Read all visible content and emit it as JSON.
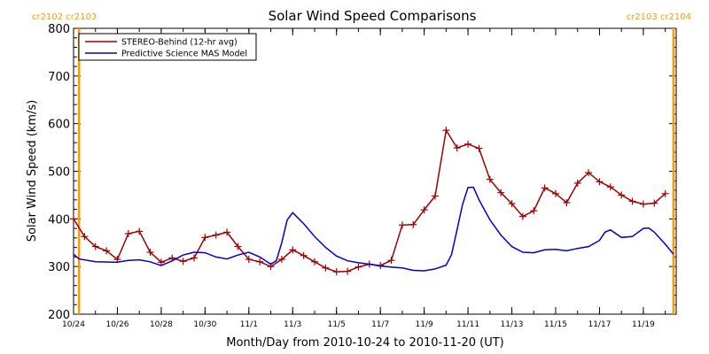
{
  "chart_data": {
    "type": "line",
    "title": "Solar Wind Speed Comparisons",
    "xlabel": "Month/Day from 2010-10-24 to 2010-11-20 (UT)",
    "ylabel": "Solar Wind Speed (km/s)",
    "xlim": [
      "2010-10-24T00:00",
      "2010-11-20T12:00"
    ],
    "ylim": [
      200,
      800
    ],
    "yticks": [
      200,
      300,
      400,
      500,
      600,
      700,
      800
    ],
    "xticks": [
      {
        "date": "2010-10-24",
        "label": "10/24"
      },
      {
        "date": "2010-10-26",
        "label": "10/26"
      },
      {
        "date": "2010-10-28",
        "label": "10/28"
      },
      {
        "date": "2010-10-30",
        "label": "10/30"
      },
      {
        "date": "2010-11-01",
        "label": "11/1"
      },
      {
        "date": "2010-11-03",
        "label": "11/3"
      },
      {
        "date": "2010-11-05",
        "label": "11/5"
      },
      {
        "date": "2010-11-07",
        "label": "11/7"
      },
      {
        "date": "2010-11-09",
        "label": "11/9"
      },
      {
        "date": "2010-11-11",
        "label": "11/11"
      },
      {
        "date": "2010-11-13",
        "label": "11/13"
      },
      {
        "date": "2010-11-15",
        "label": "11/15"
      },
      {
        "date": "2010-11-17",
        "label": "11/17"
      },
      {
        "date": "2010-11-19",
        "label": "11/19"
      }
    ],
    "carrington_markers": [
      {
        "date": "2010-10-24T06:00",
        "label": "cr2102 cr2103",
        "anchor": "left"
      },
      {
        "date": "2010-11-20T09:00",
        "label": "cr2103 cr2104",
        "anchor": "right"
      }
    ],
    "colors": {
      "stereo": "#a00000",
      "model": "#0000cc",
      "markers": "#ff9900"
    },
    "legend": {
      "position": "top-left",
      "entries": [
        {
          "name": "STEREO-Behind (12-hr avg)",
          "color": "#a00000"
        },
        {
          "name": "Predictive Science MAS Model",
          "color": "#0000cc"
        }
      ]
    },
    "series": [
      {
        "name": "STEREO-Behind (12-hr avg)",
        "color": "#a00000",
        "marker": "plus",
        "points": [
          [
            "2010-10-24T00:00",
            400
          ],
          [
            "2010-10-24T12:00",
            363
          ],
          [
            "2010-10-25T00:00",
            342
          ],
          [
            "2010-10-25T12:00",
            333
          ],
          [
            "2010-10-26T00:00",
            315
          ],
          [
            "2010-10-26T12:00",
            369
          ],
          [
            "2010-10-27T00:00",
            374
          ],
          [
            "2010-10-27T12:00",
            330
          ],
          [
            "2010-10-28T00:00",
            309
          ],
          [
            "2010-10-28T12:00",
            318
          ],
          [
            "2010-10-29T00:00",
            311
          ],
          [
            "2010-10-29T12:00",
            318
          ],
          [
            "2010-10-30T00:00",
            361
          ],
          [
            "2010-10-30T12:00",
            366
          ],
          [
            "2010-10-31T00:00",
            372
          ],
          [
            "2010-10-31T12:00",
            342
          ],
          [
            "2010-11-01T00:00",
            315
          ],
          [
            "2010-11-01T12:00",
            310
          ],
          [
            "2010-11-02T00:00",
            300
          ],
          [
            "2010-11-02T12:00",
            315
          ],
          [
            "2010-11-03T00:00",
            335
          ],
          [
            "2010-11-03T12:00",
            323
          ],
          [
            "2010-11-04T00:00",
            310
          ],
          [
            "2010-11-04T12:00",
            297
          ],
          [
            "2010-11-05T00:00",
            289
          ],
          [
            "2010-11-05T12:00",
            290
          ],
          [
            "2010-11-06T00:00",
            299
          ],
          [
            "2010-11-06T12:00",
            305
          ],
          [
            "2010-11-07T00:00",
            302
          ],
          [
            "2010-11-07T12:00",
            313
          ],
          [
            "2010-11-08T00:00",
            387
          ],
          [
            "2010-11-08T12:00",
            388
          ],
          [
            "2010-11-09T00:00",
            419
          ],
          [
            "2010-11-09T12:00",
            448
          ],
          [
            "2010-11-10T00:00",
            586
          ],
          [
            "2010-11-10T12:00",
            549
          ],
          [
            "2010-11-11T00:00",
            557
          ],
          [
            "2010-11-11T12:00",
            548
          ],
          [
            "2010-11-12T00:00",
            483
          ],
          [
            "2010-11-12T12:00",
            455
          ],
          [
            "2010-11-13T00:00",
            432
          ],
          [
            "2010-11-13T12:00",
            405
          ],
          [
            "2010-11-14T00:00",
            417
          ],
          [
            "2010-11-14T12:00",
            465
          ],
          [
            "2010-11-15T00:00",
            453
          ],
          [
            "2010-11-15T12:00",
            434
          ],
          [
            "2010-11-16T00:00",
            475
          ],
          [
            "2010-11-16T12:00",
            497
          ],
          [
            "2010-11-17T00:00",
            478
          ],
          [
            "2010-11-17T12:00",
            467
          ],
          [
            "2010-11-18T00:00",
            450
          ],
          [
            "2010-11-18T12:00",
            437
          ],
          [
            "2010-11-19T00:00",
            431
          ],
          [
            "2010-11-19T12:00",
            433
          ],
          [
            "2010-11-20T00:00",
            453
          ]
        ]
      },
      {
        "name": "Predictive Science MAS Model",
        "color": "#0000cc",
        "marker": "none",
        "points": [
          [
            "2010-10-24T00:00",
            326
          ],
          [
            "2010-10-24T06:00",
            316
          ],
          [
            "2010-10-25T00:00",
            310
          ],
          [
            "2010-10-26T00:00",
            309
          ],
          [
            "2010-10-26T12:00",
            313
          ],
          [
            "2010-10-27T00:00",
            314
          ],
          [
            "2010-10-27T12:00",
            310
          ],
          [
            "2010-10-28T00:00",
            302
          ],
          [
            "2010-10-28T12:00",
            312
          ],
          [
            "2010-10-29T00:00",
            324
          ],
          [
            "2010-10-29T12:00",
            330
          ],
          [
            "2010-10-30T00:00",
            329
          ],
          [
            "2010-10-30T12:00",
            320
          ],
          [
            "2010-10-31T00:00",
            316
          ],
          [
            "2010-10-31T12:00",
            324
          ],
          [
            "2010-11-01T00:00",
            330
          ],
          [
            "2010-11-01T12:00",
            320
          ],
          [
            "2010-11-02T00:00",
            305
          ],
          [
            "2010-11-02T06:00",
            312
          ],
          [
            "2010-11-02T12:00",
            350
          ],
          [
            "2010-11-02T18:00",
            398
          ],
          [
            "2010-11-03T00:00",
            413
          ],
          [
            "2010-11-03T12:00",
            390
          ],
          [
            "2010-11-04T00:00",
            363
          ],
          [
            "2010-11-04T12:00",
            340
          ],
          [
            "2010-11-05T00:00",
            322
          ],
          [
            "2010-11-05T12:00",
            312
          ],
          [
            "2010-11-06T00:00",
            308
          ],
          [
            "2010-11-06T12:00",
            305
          ],
          [
            "2010-11-07T00:00",
            301
          ],
          [
            "2010-11-07T12:00",
            299
          ],
          [
            "2010-11-08T00:00",
            297
          ],
          [
            "2010-11-08T12:00",
            292
          ],
          [
            "2010-11-09T00:00",
            291
          ],
          [
            "2010-11-09T12:00",
            295
          ],
          [
            "2010-11-10T00:00",
            303
          ],
          [
            "2010-11-10T06:00",
            325
          ],
          [
            "2010-11-10T12:00",
            377
          ],
          [
            "2010-11-10T18:00",
            430
          ],
          [
            "2010-11-11T00:00",
            466
          ],
          [
            "2010-11-11T06:00",
            466
          ],
          [
            "2010-11-11T12:00",
            440
          ],
          [
            "2010-11-12T00:00",
            398
          ],
          [
            "2010-11-12T12:00",
            366
          ],
          [
            "2010-11-13T00:00",
            342
          ],
          [
            "2010-11-13T12:00",
            330
          ],
          [
            "2010-11-14T00:00",
            329
          ],
          [
            "2010-11-14T12:00",
            335
          ],
          [
            "2010-11-15T00:00",
            336
          ],
          [
            "2010-11-15T12:00",
            333
          ],
          [
            "2010-11-16T00:00",
            338
          ],
          [
            "2010-11-16T12:00",
            342
          ],
          [
            "2010-11-17T00:00",
            355
          ],
          [
            "2010-11-17T06:00",
            372
          ],
          [
            "2010-11-17T12:00",
            377
          ],
          [
            "2010-11-18T00:00",
            361
          ],
          [
            "2010-11-18T12:00",
            363
          ],
          [
            "2010-11-19T00:00",
            380
          ],
          [
            "2010-11-19T06:00",
            381
          ],
          [
            "2010-11-19T12:00",
            372
          ],
          [
            "2010-11-20T00:00",
            347
          ],
          [
            "2010-11-20T09:00",
            326
          ]
        ]
      }
    ]
  }
}
